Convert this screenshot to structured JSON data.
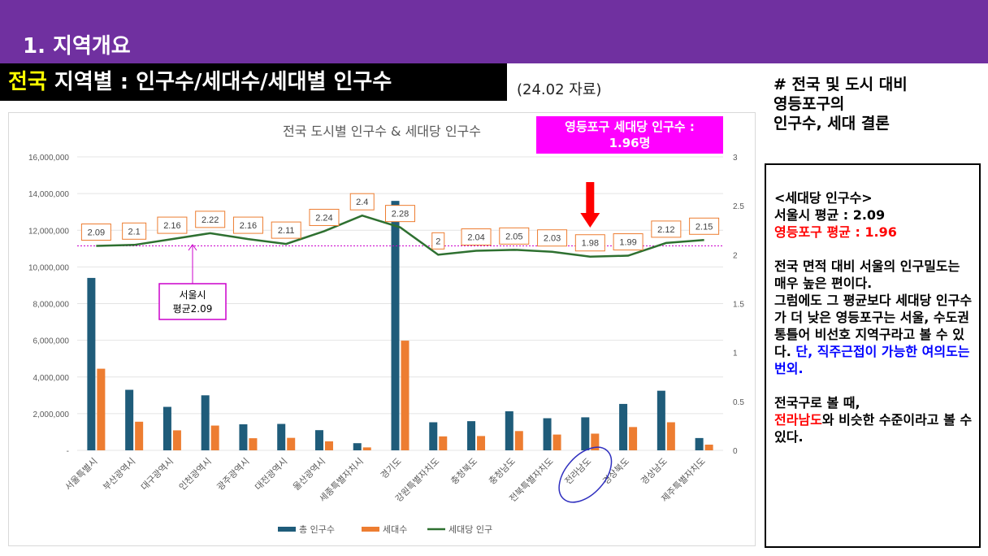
{
  "header": {
    "section_title": "1. 지역개요",
    "title_highlight": "전국",
    "title_rest": " 지역별 : 인구수/세대수/세대별 인구수",
    "data_date": "(24.02 자료)"
  },
  "callout": {
    "line1": "영등포구 세대당 인구수 :",
    "line2": "1.96명"
  },
  "right_heading": {
    "line1": "# 전국 및 도시 대비",
    "line2": "영등포구의",
    "line3": "인구수, 세대 결론"
  },
  "notes": {
    "heading": "<세대당 인구수>",
    "seoul_avg": "서울시 평균 : 2.09",
    "ydp_avg": "영등포구 평균 : 1.96",
    "para1": "전국 면적 대비 서울의 인구밀도는 매우 높은 편이다.",
    "para2": "그럼에도 그 평균보다 세대당 인구수가 더 낮은 영등포구는 서울, 수도권 통틀어 비선호 지역구라고 볼 수 있다.",
    "para2_blue": " 단, 직주근접이 가능한 여의도는 번외.",
    "para3_a": "전국구로 볼 때,",
    "para3_red": "전라남도",
    "para3_b": "와 비슷한 수준이라고 볼 수 있다."
  },
  "chart_data": {
    "type": "bar",
    "title": "전국 도시별 인구수 & 세대당 인구수",
    "categories": [
      "서울특별시",
      "부산광역시",
      "대구광역시",
      "인천광역시",
      "광주광역시",
      "대전광역시",
      "울산광역시",
      "세종특별자치시",
      "경기도",
      "강원특별자치도",
      "충청북도",
      "충청남도",
      "전북특별자치도",
      "전라남도",
      "경상북도",
      "경상남도",
      "제주특별자치도"
    ],
    "series": [
      {
        "name": "총 인구수",
        "type": "bar",
        "axis": "left",
        "color": "#1f5c7a",
        "values": [
          9400000,
          3300000,
          2370000,
          3000000,
          1420000,
          1440000,
          1100000,
          390000,
          13600000,
          1530000,
          1590000,
          2130000,
          1750000,
          1800000,
          2530000,
          3250000,
          670000
        ]
      },
      {
        "name": "세대수",
        "type": "bar",
        "axis": "left",
        "color": "#ed7d31",
        "values": [
          4450000,
          1560000,
          1090000,
          1350000,
          660000,
          680000,
          490000,
          160000,
          5980000,
          760000,
          780000,
          1050000,
          860000,
          910000,
          1270000,
          1530000,
          310000
        ]
      },
      {
        "name": "세대당 인구",
        "type": "line",
        "axis": "right",
        "color": "#2e7030",
        "values": [
          2.09,
          2.1,
          2.16,
          2.22,
          2.16,
          2.11,
          2.24,
          2.4,
          2.28,
          2,
          2.04,
          2.05,
          2.03,
          1.98,
          1.99,
          2.12,
          2.15
        ]
      }
    ],
    "y_left": {
      "min": 0,
      "max": 16000000,
      "ticks": [
        "-",
        "2,000,000",
        "4,000,000",
        "6,000,000",
        "8,000,000",
        "10,000,000",
        "12,000,000",
        "14,000,000",
        "16,000,000"
      ]
    },
    "y_right": {
      "min": 0,
      "max": 3,
      "ticks": [
        "0",
        "0.5",
        "1",
        "1.5",
        "2",
        "2.5",
        "3"
      ]
    },
    "reference_line": {
      "value": 2.09,
      "axis": "right",
      "color": "#cc00cc"
    },
    "annotation": {
      "text_line1": "서울시",
      "text_line2": "평균2.09"
    },
    "highlight_category": "전라남도",
    "arrow_category": "전라남도",
    "grid": true,
    "legend_position": "bottom"
  }
}
